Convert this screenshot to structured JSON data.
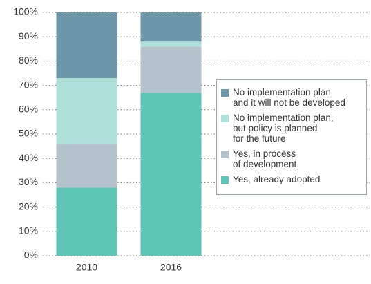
{
  "chart_data": {
    "type": "stacked_bar",
    "categories": [
      "2010",
      "2016"
    ],
    "series": [
      {
        "name": "Yes, already adopted",
        "color": "#5ec4b6",
        "values": [
          28,
          67
        ]
      },
      {
        "name": "Yes, in process\nof development",
        "color": "#b3c2cb",
        "values": [
          18,
          19
        ]
      },
      {
        "name": "No implementation plan,\nbut policy is planned\nfor the future",
        "color": "#b0e0da",
        "values": [
          27,
          2
        ]
      },
      {
        "name": "No implementation plan\nand it will not be developed",
        "color": "#6f97aa",
        "values": [
          27,
          12
        ]
      }
    ],
    "ylim": [
      0,
      100
    ],
    "yticks": [
      {
        "value": 0,
        "label": "0%"
      },
      {
        "value": 10,
        "label": "10%"
      },
      {
        "value": 20,
        "label": "20%"
      },
      {
        "value": 30,
        "label": "30%"
      },
      {
        "value": 40,
        "label": "40%"
      },
      {
        "value": 50,
        "label": "50%"
      },
      {
        "value": 60,
        "label": "60%"
      },
      {
        "value": 70,
        "label": "70%"
      },
      {
        "value": 80,
        "label": "80%"
      },
      {
        "value": 90,
        "label": "90%"
      },
      {
        "value": 100,
        "label": "100%"
      }
    ],
    "grid": true
  }
}
